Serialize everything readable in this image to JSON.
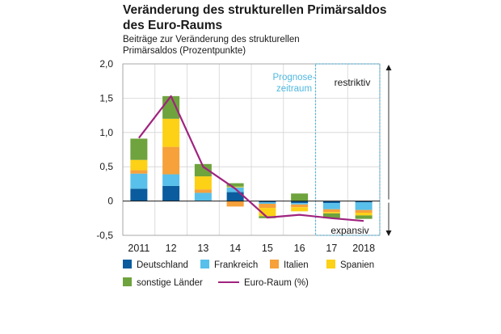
{
  "title_line1": "Veränderung des strukturellen Primärsaldos",
  "title_line2": "des Euro-Raums",
  "subtitle_line1": "Beiträge zur Veränderung des strukturellen",
  "subtitle_line2": "Primärsaldos (Prozentpunkte)",
  "forecast_label_line1": "Prognose-",
  "forecast_label_line2": "zeitraum",
  "label_restrictive": "restriktiv",
  "label_expansive": "expansiv",
  "colors": {
    "Deutschland": "#0a5c9e",
    "Frankreich": "#58c0ea",
    "Italien": "#f6a13a",
    "Spanien": "#fcd116",
    "sonstige Länder": "#6ea33d",
    "Euro-Raum (%)": "#a0237f",
    "forecast": "#4fb8df"
  },
  "legend": [
    {
      "label": "Deutschland",
      "color": "#0a5c9e",
      "kind": "box"
    },
    {
      "label": "Frankreich",
      "color": "#58c0ea",
      "kind": "box"
    },
    {
      "label": "Italien",
      "color": "#f6a13a",
      "kind": "box"
    },
    {
      "label": "Spanien",
      "color": "#fcd116",
      "kind": "box"
    },
    {
      "label": "sonstige Länder",
      "color": "#6ea33d",
      "kind": "box"
    },
    {
      "label": "Euro-Raum (%)",
      "color": "#a0237f",
      "kind": "line"
    }
  ],
  "chart_data": {
    "type": "bar",
    "stacked": true,
    "categories": [
      "2011",
      "12",
      "13",
      "14",
      "15",
      "16",
      "17",
      "2018"
    ],
    "ylim": [
      -0.5,
      2.0
    ],
    "yticks": [
      -0.5,
      0,
      0.5,
      1.0,
      1.5,
      2.0
    ],
    "ytick_labels": [
      "-0,5",
      "0",
      "0,5",
      "1,0",
      "1,5",
      "2,0"
    ],
    "grid": true,
    "forecast_categories": [
      "17",
      "2018"
    ],
    "series": [
      {
        "name": "Deutschland",
        "values": [
          0.18,
          0.22,
          0.0,
          0.13,
          -0.02,
          -0.03,
          -0.03,
          -0.02
        ]
      },
      {
        "name": "Frankreich",
        "values": [
          0.22,
          0.17,
          0.12,
          0.07,
          -0.02,
          -0.02,
          -0.09,
          -0.11
        ]
      },
      {
        "name": "Italien",
        "values": [
          0.05,
          0.4,
          0.05,
          -0.08,
          -0.06,
          -0.04,
          -0.04,
          -0.04
        ]
      },
      {
        "name": "Spanien",
        "values": [
          0.15,
          0.41,
          0.19,
          0.01,
          -0.12,
          -0.06,
          -0.02,
          -0.04
        ]
      },
      {
        "name": "sonstige Länder",
        "values": [
          0.31,
          0.33,
          0.18,
          0.05,
          -0.03,
          0.11,
          -0.07,
          -0.05
        ]
      }
    ],
    "line": {
      "name": "Euro-Raum (%)",
      "values": [
        0.92,
        1.53,
        0.5,
        0.18,
        -0.24,
        -0.2,
        -0.25,
        -0.29
      ]
    }
  }
}
